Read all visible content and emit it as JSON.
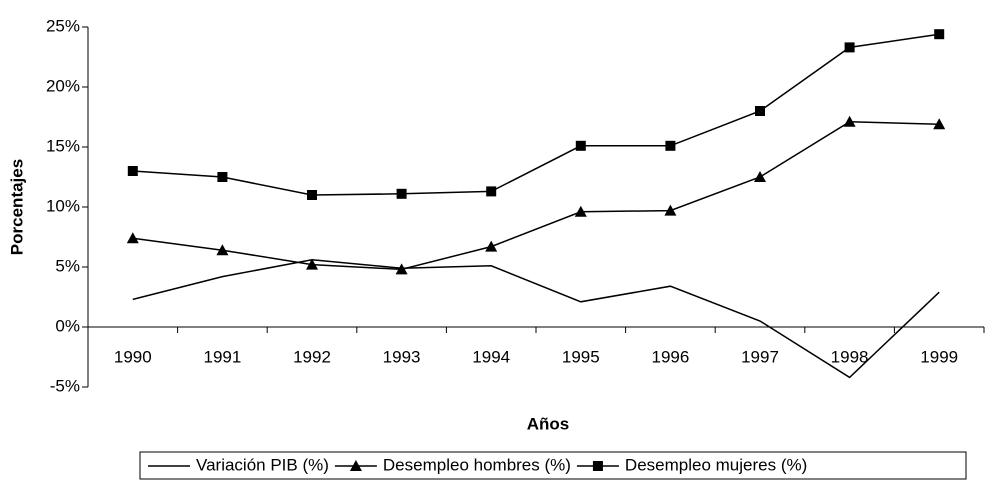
{
  "chart_data": {
    "type": "line",
    "x_label": "Años",
    "y_label": "Porcentajes",
    "categories": [
      "1990",
      "1991",
      "1992",
      "1993",
      "1994",
      "1995",
      "1996",
      "1997",
      "1998",
      "1999"
    ],
    "series": [
      {
        "name": "Variación PIB (%)",
        "color": "#000000",
        "marker": "none",
        "values": [
          2.3,
          4.2,
          5.6,
          4.9,
          5.1,
          2.1,
          3.4,
          0.5,
          -4.2,
          2.9
        ]
      },
      {
        "name": "Desempleo hombres (%)",
        "color": "#000000",
        "marker": "triangle",
        "values": [
          7.4,
          6.4,
          5.2,
          4.8,
          6.7,
          9.6,
          9.7,
          12.5,
          17.1,
          16.9
        ]
      },
      {
        "name": "Desempleo mujeres (%)",
        "color": "#000000",
        "marker": "square",
        "values": [
          13.0,
          12.5,
          11.0,
          11.1,
          11.3,
          15.1,
          15.1,
          18.0,
          23.3,
          24.4
        ]
      }
    ],
    "ylim": [
      -5,
      25
    ],
    "yticks": [
      {
        "value": -5,
        "label": "-5%"
      },
      {
        "value": 0,
        "label": "0%"
      },
      {
        "value": 5,
        "label": "5%"
      },
      {
        "value": 10,
        "label": "10%"
      },
      {
        "value": 15,
        "label": "15%"
      },
      {
        "value": 20,
        "label": "20%"
      },
      {
        "value": 25,
        "label": "25%"
      }
    ],
    "grid": false,
    "legend": "bottom"
  }
}
